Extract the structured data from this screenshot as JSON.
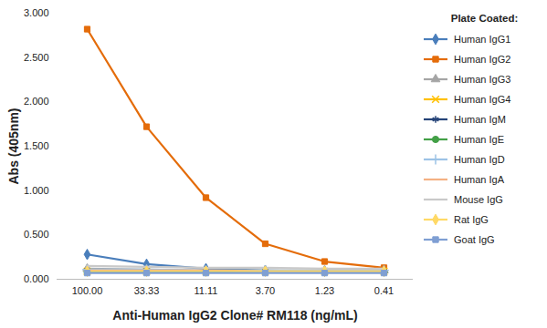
{
  "chart_data": {
    "type": "line",
    "x_label": "Anti-Human IgG2 Clone# RM118 (ng/mL)",
    "y_label": "Abs (405nm)",
    "legend_title": "Plate Coated:",
    "legend": "right",
    "grid": false,
    "categories": [
      "100.00",
      "33.33",
      "11.11",
      "3.70",
      "1.23",
      "0.41"
    ],
    "ylim": [
      0,
      3
    ],
    "yticks": [
      {
        "value": 0,
        "label": "0.000"
      },
      {
        "value": 0.5,
        "label": "0.500"
      },
      {
        "value": 1,
        "label": "1.000"
      },
      {
        "value": 1.5,
        "label": "1.500"
      },
      {
        "value": 2,
        "label": "2.000"
      },
      {
        "value": 2.5,
        "label": "2.500"
      },
      {
        "value": 3,
        "label": "3.000"
      }
    ],
    "series": [
      {
        "name": "Human IgG1",
        "color": "#4a7ebb",
        "marker": "diamond",
        "values": [
          0.28,
          0.17,
          0.12,
          0.1,
          0.09,
          0.09
        ]
      },
      {
        "name": "Human IgG2",
        "color": "#e46c0a",
        "marker": "square",
        "values": [
          2.82,
          1.72,
          0.92,
          0.4,
          0.2,
          0.13
        ]
      },
      {
        "name": "Human IgG3",
        "color": "#a5a5a5",
        "marker": "triangle",
        "values": [
          0.12,
          0.11,
          0.1,
          0.1,
          0.1,
          0.1
        ]
      },
      {
        "name": "Human IgG4",
        "color": "#ffc000",
        "marker": "times",
        "values": [
          0.09,
          0.09,
          0.09,
          0.09,
          0.09,
          0.09
        ]
      },
      {
        "name": "Human IgM",
        "color": "#264478",
        "marker": "asterisk",
        "values": [
          0.1,
          0.1,
          0.09,
          0.09,
          0.09,
          0.09
        ]
      },
      {
        "name": "Human IgE",
        "color": "#43a047",
        "marker": "circle",
        "values": [
          0.08,
          0.08,
          0.08,
          0.08,
          0.08,
          0.08
        ]
      },
      {
        "name": "Human IgD",
        "color": "#9dc3e6",
        "marker": "plus",
        "values": [
          0.11,
          0.11,
          0.1,
          0.1,
          0.1,
          0.1
        ]
      },
      {
        "name": "Human IgA",
        "color": "#f4b183",
        "marker": "none",
        "values": [
          0.1,
          0.1,
          0.1,
          0.09,
          0.09,
          0.09
        ]
      },
      {
        "name": "Mouse IgG",
        "color": "#c9c9c9",
        "marker": "none",
        "values": [
          0.15,
          0.14,
          0.13,
          0.13,
          0.12,
          0.12
        ]
      },
      {
        "name": "Rat IgG",
        "color": "#ffd966",
        "marker": "diamond",
        "values": [
          0.09,
          0.09,
          0.09,
          0.09,
          0.09,
          0.09
        ]
      },
      {
        "name": "Goat IgG",
        "color": "#7f9fd3",
        "marker": "square",
        "values": [
          0.07,
          0.07,
          0.07,
          0.07,
          0.07,
          0.07
        ]
      }
    ]
  }
}
